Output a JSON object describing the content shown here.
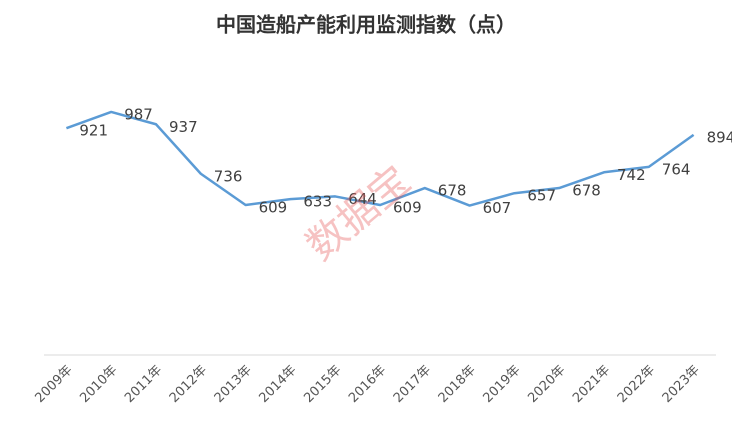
{
  "chart_data": {
    "type": "line",
    "title": "中国造船产能利用监测指数（点）",
    "categories": [
      "2009年",
      "2010年",
      "2011年",
      "2012年",
      "2013年",
      "2014年",
      "2015年",
      "2016年",
      "2017年",
      "2018年",
      "2019年",
      "2020年",
      "2021年",
      "2022年",
      "2023年"
    ],
    "values": [
      921,
      987,
      937,
      736,
      609,
      633,
      644,
      609,
      678,
      607,
      657,
      678,
      742,
      764,
      894
    ],
    "color": "#5b9bd5",
    "ylim": [
      0,
      1200
    ],
    "watermark": "数据宝"
  }
}
